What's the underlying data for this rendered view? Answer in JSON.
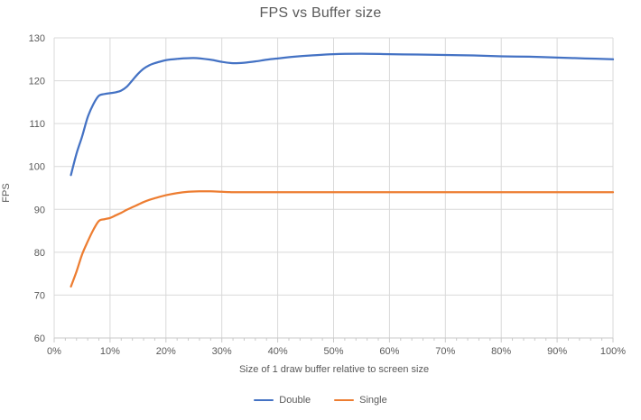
{
  "chart_data": {
    "type": "line",
    "title": "FPS vs Buffer size",
    "xlabel": "Size of 1 draw buffer relative to screen size",
    "ylabel": "FPS",
    "xlim": [
      0,
      100
    ],
    "ylim": [
      60,
      130
    ],
    "x_tick_values": [
      0,
      10,
      20,
      30,
      40,
      50,
      60,
      70,
      80,
      90,
      100
    ],
    "x_tick_labels": [
      "0%",
      "10%",
      "20%",
      "30%",
      "40%",
      "50%",
      "60%",
      "70%",
      "80%",
      "90%",
      "100%"
    ],
    "x_minor_tick_step": 2,
    "y_tick_values": [
      60,
      70,
      80,
      90,
      100,
      110,
      120,
      130
    ],
    "grid": true,
    "legend_position": "bottom",
    "text_color": "#595959",
    "grid_color": "#D9D9D9",
    "axis_color": "#C9C9C9",
    "series": [
      {
        "name": "Double",
        "color": "#4472C4",
        "points": [
          [
            3,
            98
          ],
          [
            4,
            103
          ],
          [
            5,
            107
          ],
          [
            6,
            111.5
          ],
          [
            7,
            114.5
          ],
          [
            8,
            116.5
          ],
          [
            9,
            116.9
          ],
          [
            10,
            117.1
          ],
          [
            11,
            117.3
          ],
          [
            12,
            117.7
          ],
          [
            13,
            118.6
          ],
          [
            14,
            120.1
          ],
          [
            15,
            121.6
          ],
          [
            16,
            122.8
          ],
          [
            17,
            123.6
          ],
          [
            18,
            124.1
          ],
          [
            20,
            124.8
          ],
          [
            22,
            125.1
          ],
          [
            25,
            125.3
          ],
          [
            28,
            124.9
          ],
          [
            30,
            124.4
          ],
          [
            32,
            124.1
          ],
          [
            34,
            124.2
          ],
          [
            36,
            124.5
          ],
          [
            38,
            124.9
          ],
          [
            40,
            125.2
          ],
          [
            43,
            125.6
          ],
          [
            46,
            125.9
          ],
          [
            50,
            126.2
          ],
          [
            55,
            126.3
          ],
          [
            60,
            126.2
          ],
          [
            65,
            126.1
          ],
          [
            70,
            126.0
          ],
          [
            75,
            125.9
          ],
          [
            80,
            125.7
          ],
          [
            85,
            125.6
          ],
          [
            90,
            125.4
          ],
          [
            95,
            125.2
          ],
          [
            100,
            125
          ]
        ]
      },
      {
        "name": "Single",
        "color": "#ED7D31",
        "points": [
          [
            3,
            72
          ],
          [
            4,
            75.5
          ],
          [
            5,
            79.5
          ],
          [
            6,
            82.5
          ],
          [
            7,
            85.2
          ],
          [
            8,
            87.3
          ],
          [
            9,
            87.7
          ],
          [
            10,
            88
          ],
          [
            11,
            88.6
          ],
          [
            12,
            89.2
          ],
          [
            13,
            89.9
          ],
          [
            14,
            90.5
          ],
          [
            15,
            91.1
          ],
          [
            16,
            91.7
          ],
          [
            17,
            92.2
          ],
          [
            18,
            92.6
          ],
          [
            20,
            93.3
          ],
          [
            22,
            93.8
          ],
          [
            24,
            94.1
          ],
          [
            26,
            94.2
          ],
          [
            28,
            94.2
          ],
          [
            30,
            94.1
          ],
          [
            32,
            94
          ],
          [
            35,
            94
          ],
          [
            40,
            94
          ],
          [
            45,
            94
          ],
          [
            50,
            94
          ],
          [
            55,
            94
          ],
          [
            60,
            94
          ],
          [
            65,
            94
          ],
          [
            70,
            94
          ],
          [
            75,
            94
          ],
          [
            80,
            94
          ],
          [
            85,
            94
          ],
          [
            90,
            94
          ],
          [
            95,
            94
          ],
          [
            100,
            94
          ]
        ]
      }
    ]
  }
}
